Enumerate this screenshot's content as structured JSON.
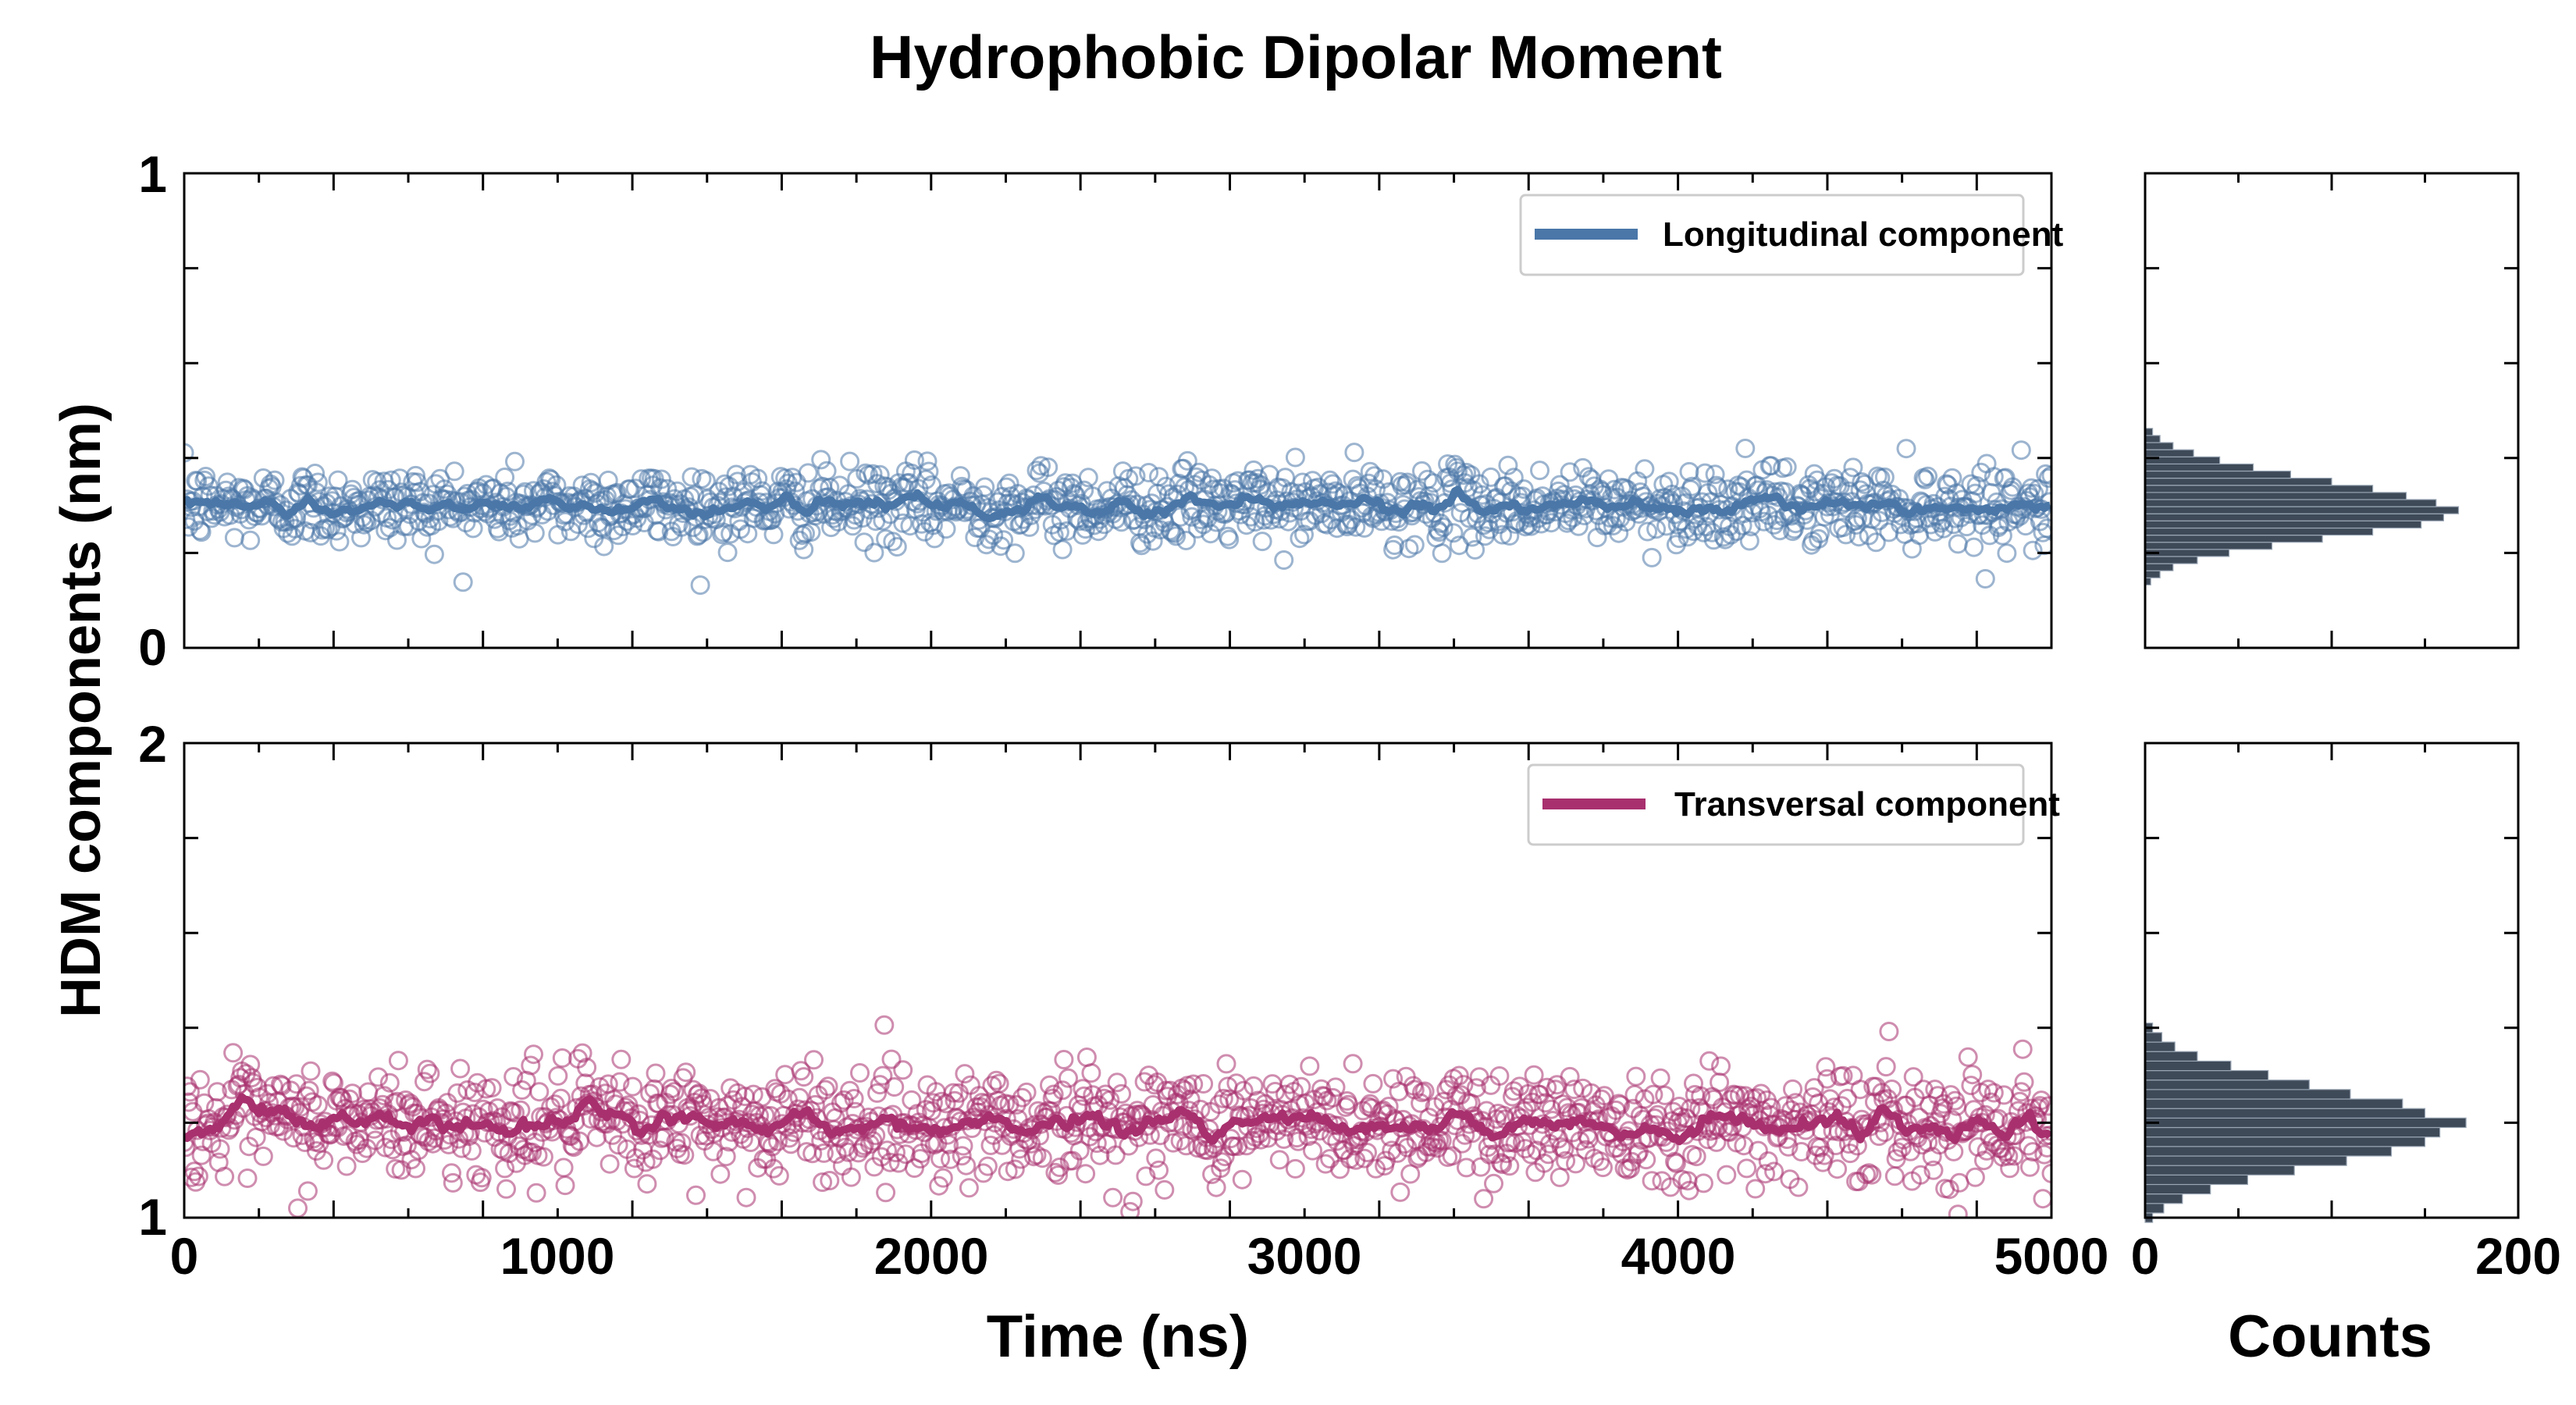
{
  "figure_title": "Hydrophobic Dipolar Moment",
  "y_axis_label": "HDM components (nm)",
  "x_axis_label": "Time (ns)",
  "hist_x_label": "Counts",
  "colors": {
    "longitudinal": "#4a77a8",
    "transversal": "#a8306e",
    "histogram_fill": "#2f3b4a"
  },
  "chart_data": [
    {
      "type": "scatter",
      "panel": "top-time-series",
      "series": [
        {
          "name": "Longitudinal component",
          "mean": 0.3,
          "spread": 0.04,
          "n_points": 1300,
          "x_range": [
            0,
            5000
          ],
          "smoothed_line": true
        }
      ],
      "xlim": [
        0,
        5000
      ],
      "ylim": [
        0,
        1
      ],
      "yticks": [
        "0",
        "1"
      ],
      "xticks": [],
      "legend": {
        "label": "Longitudinal component",
        "placement": "top-right"
      }
    },
    {
      "type": "scatter",
      "panel": "bottom-time-series",
      "series": [
        {
          "name": "Transversal component",
          "mean": 1.2,
          "spread": 0.06,
          "n_points": 1300,
          "x_range": [
            0,
            5000
          ],
          "smoothed_line": true
        }
      ],
      "xlim": [
        0,
        5000
      ],
      "ylim": [
        1,
        2
      ],
      "yticks": [
        "1",
        "2"
      ],
      "xticks": [
        "0",
        "1000",
        "2000",
        "3000",
        "4000",
        "5000"
      ],
      "xlabel": "Time (ns)",
      "legend": {
        "label": "Transversal component",
        "placement": "top-right"
      }
    },
    {
      "type": "bar",
      "panel": "top-histogram",
      "orientation": "horizontal",
      "bin_centers": [
        0.14,
        0.155,
        0.17,
        0.185,
        0.2,
        0.215,
        0.23,
        0.245,
        0.26,
        0.275,
        0.29,
        0.305,
        0.32,
        0.335,
        0.35,
        0.365,
        0.38,
        0.395,
        0.41,
        0.425,
        0.44,
        0.455
      ],
      "counts": [
        3,
        8,
        15,
        28,
        45,
        68,
        95,
        122,
        148,
        160,
        168,
        156,
        140,
        122,
        100,
        78,
        58,
        40,
        26,
        15,
        8,
        4
      ],
      "xlim": [
        0,
        200
      ],
      "ylim": [
        0,
        1
      ]
    },
    {
      "type": "bar",
      "panel": "bottom-histogram",
      "orientation": "horizontal",
      "bin_centers": [
        1.0,
        1.02,
        1.04,
        1.06,
        1.08,
        1.1,
        1.12,
        1.14,
        1.16,
        1.18,
        1.2,
        1.22,
        1.24,
        1.26,
        1.28,
        1.3,
        1.32,
        1.34,
        1.36,
        1.38,
        1.4
      ],
      "counts": [
        4,
        10,
        20,
        35,
        55,
        80,
        108,
        132,
        150,
        158,
        172,
        150,
        138,
        110,
        88,
        66,
        46,
        28,
        16,
        9,
        4
      ],
      "xlim": [
        0,
        200
      ],
      "ylim": [
        1,
        2
      ],
      "xticks": [
        "0",
        "200"
      ],
      "xlabel": "Counts"
    }
  ]
}
